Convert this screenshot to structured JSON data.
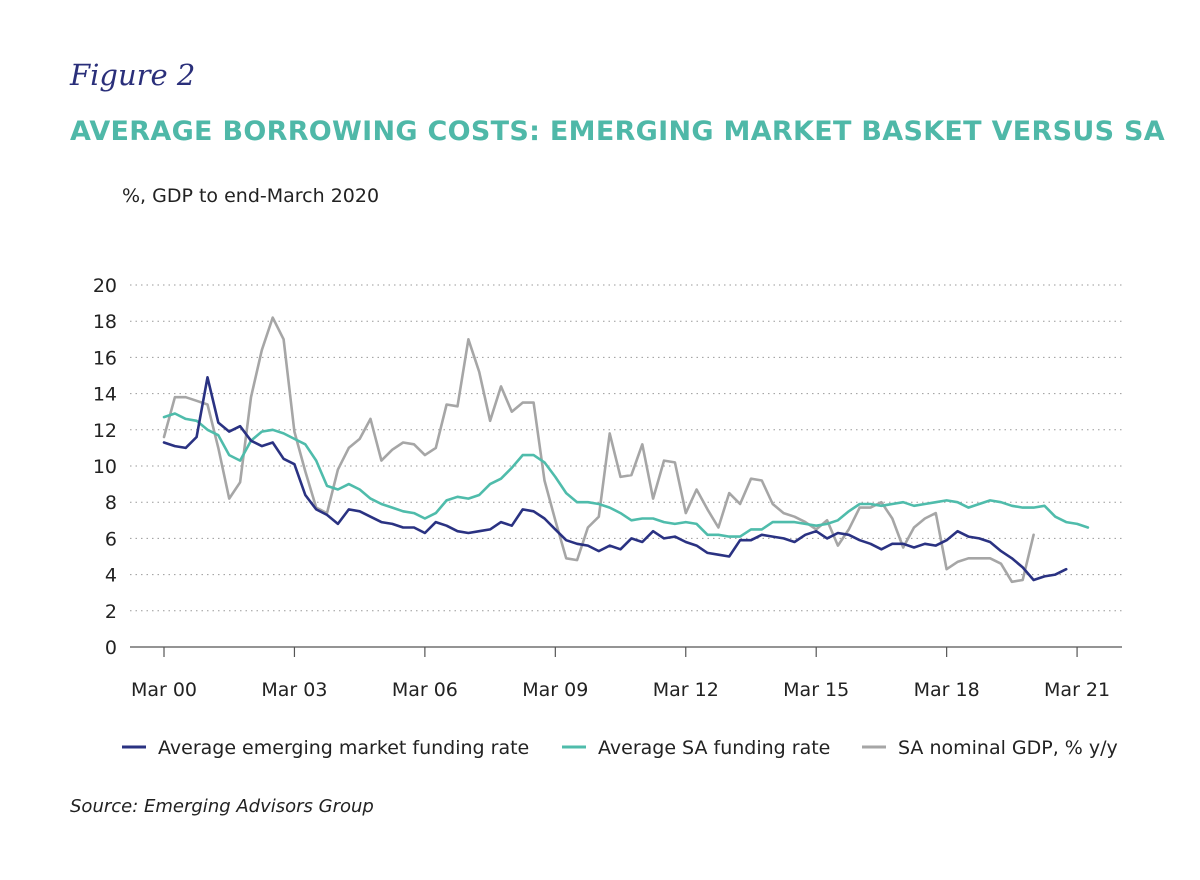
{
  "header": {
    "figure_label": "Figure 2",
    "title": "AVERAGE BORROWING COSTS: EMERGING MARKET BASKET VERSUS SA",
    "subtitle": "%, GDP to end-March 2020"
  },
  "source": "Source: Emerging Advisors Group",
  "colors": {
    "title": "#4fb8a8",
    "figure_label": "#2a2f7a"
  },
  "chart_data": {
    "type": "line",
    "title": "AVERAGE BORROWING COSTS: EMERGING MARKET BASKET VERSUS SA",
    "subtitle": "%, GDP to end-March 2020",
    "xlabel": "",
    "ylabel": "",
    "x_range": [
      "Mar 00",
      "Jun 21"
    ],
    "ylim": [
      0,
      20
    ],
    "yticks": [
      0,
      2,
      4,
      6,
      8,
      10,
      12,
      14,
      16,
      18,
      20
    ],
    "xticks": [
      "Mar 00",
      "Mar 03",
      "Mar 06",
      "Mar 09",
      "Mar 12",
      "Mar 15",
      "Mar 18",
      "Mar 21"
    ],
    "grid": "horizontal-dotted",
    "legend": "bottom",
    "x_unit": "quarters",
    "series": [
      {
        "name": "Average emerging market funding rate",
        "color": "#2a3282",
        "x": [
          "Mar 00",
          "Jun 00",
          "Sep 00",
          "Dec 00",
          "Mar 01",
          "Jun 01",
          "Sep 01",
          "Dec 01",
          "Mar 02",
          "Jun 02",
          "Sep 02",
          "Dec 02",
          "Mar 03",
          "Jun 03",
          "Sep 03",
          "Dec 03",
          "Mar 04",
          "Jun 04",
          "Sep 04",
          "Dec 04",
          "Mar 05",
          "Jun 05",
          "Sep 05",
          "Dec 05",
          "Mar 06",
          "Jun 06",
          "Sep 06",
          "Dec 06",
          "Mar 07",
          "Jun 07",
          "Sep 07",
          "Dec 07",
          "Mar 08",
          "Jun 08",
          "Sep 08",
          "Dec 08",
          "Mar 09",
          "Jun 09",
          "Sep 09",
          "Dec 09",
          "Mar 10",
          "Jun 10",
          "Sep 10",
          "Dec 10",
          "Mar 11",
          "Jun 11",
          "Sep 11",
          "Dec 11",
          "Mar 12",
          "Jun 12",
          "Sep 12",
          "Dec 12",
          "Mar 13",
          "Jun 13",
          "Sep 13",
          "Dec 13",
          "Mar 14",
          "Jun 14",
          "Sep 14",
          "Dec 14",
          "Mar 15",
          "Jun 15",
          "Sep 15",
          "Dec 15",
          "Mar 16",
          "Jun 16",
          "Sep 16",
          "Dec 16",
          "Mar 17",
          "Jun 17",
          "Sep 17",
          "Dec 17",
          "Mar 18",
          "Jun 18",
          "Sep 18",
          "Dec 18",
          "Mar 19",
          "Jun 19",
          "Sep 19",
          "Dec 19",
          "Mar 20",
          "Jun 20",
          "Sep 20",
          "Dec 20",
          "Mar 21",
          "Jun 21"
        ],
        "values": [
          11.3,
          11.1,
          11.0,
          11.6,
          14.9,
          12.4,
          11.9,
          12.2,
          11.4,
          11.1,
          11.3,
          10.4,
          10.1,
          8.4,
          7.6,
          7.3,
          6.8,
          7.6,
          7.5,
          7.2,
          6.9,
          6.8,
          6.6,
          6.6,
          6.3,
          6.9,
          6.7,
          6.4,
          6.3,
          6.4,
          6.5,
          6.9,
          6.7,
          7.6,
          7.5,
          7.1,
          6.5,
          5.9,
          5.7,
          5.6,
          5.3,
          5.6,
          5.4,
          6.0,
          5.8,
          6.4,
          6.0,
          6.1,
          5.8,
          5.6,
          5.2,
          5.1,
          5.0,
          5.9,
          5.9,
          6.2,
          6.1,
          6.0,
          5.8,
          6.2,
          6.4,
          6.0,
          6.3,
          6.2,
          5.9,
          5.7,
          5.4,
          5.7,
          5.7,
          5.5,
          5.7,
          5.6,
          5.9,
          6.4,
          6.1,
          6.0,
          5.8,
          5.3,
          4.9,
          4.4,
          3.7,
          3.9,
          4.0,
          4.3,
          null,
          null
        ]
      },
      {
        "name": "Average SA funding rate",
        "color": "#4fbcab",
        "x": [
          "Mar 00",
          "Jun 00",
          "Sep 00",
          "Dec 00",
          "Mar 01",
          "Jun 01",
          "Sep 01",
          "Dec 01",
          "Mar 02",
          "Jun 02",
          "Sep 02",
          "Dec 02",
          "Mar 03",
          "Jun 03",
          "Sep 03",
          "Dec 03",
          "Mar 04",
          "Jun 04",
          "Sep 04",
          "Dec 04",
          "Mar 05",
          "Jun 05",
          "Sep 05",
          "Dec 05",
          "Mar 06",
          "Jun 06",
          "Sep 06",
          "Dec 06",
          "Mar 07",
          "Jun 07",
          "Sep 07",
          "Dec 07",
          "Mar 08",
          "Jun 08",
          "Sep 08",
          "Dec 08",
          "Mar 09",
          "Jun 09",
          "Sep 09",
          "Dec 09",
          "Mar 10",
          "Jun 10",
          "Sep 10",
          "Dec 10",
          "Mar 11",
          "Jun 11",
          "Sep 11",
          "Dec 11",
          "Mar 12",
          "Jun 12",
          "Sep 12",
          "Dec 12",
          "Mar 13",
          "Jun 13",
          "Sep 13",
          "Dec 13",
          "Mar 14",
          "Jun 14",
          "Sep 14",
          "Dec 14",
          "Mar 15",
          "Jun 15",
          "Sep 15",
          "Dec 15",
          "Mar 16",
          "Jun 16",
          "Sep 16",
          "Dec 16",
          "Mar 17",
          "Jun 17",
          "Sep 17",
          "Dec 17",
          "Mar 18",
          "Jun 18",
          "Sep 18",
          "Dec 18",
          "Mar 19",
          "Jun 19",
          "Sep 19",
          "Dec 19",
          "Mar 20",
          "Jun 20",
          "Sep 20",
          "Dec 20",
          "Mar 21",
          "Jun 21"
        ],
        "values": [
          12.7,
          12.9,
          12.6,
          12.5,
          12.0,
          11.7,
          10.6,
          10.3,
          11.4,
          11.9,
          12.0,
          11.8,
          11.5,
          11.2,
          10.3,
          8.9,
          8.7,
          9.0,
          8.7,
          8.2,
          7.9,
          7.7,
          7.5,
          7.4,
          7.1,
          7.4,
          8.1,
          8.3,
          8.2,
          8.4,
          9.0,
          9.3,
          9.9,
          10.6,
          10.6,
          10.2,
          9.4,
          8.5,
          8.0,
          8.0,
          7.9,
          7.7,
          7.4,
          7.0,
          7.1,
          7.1,
          6.9,
          6.8,
          6.9,
          6.8,
          6.2,
          6.2,
          6.1,
          6.1,
          6.5,
          6.5,
          6.9,
          6.9,
          6.9,
          6.8,
          6.7,
          6.8,
          7.0,
          7.5,
          7.9,
          7.9,
          7.8,
          7.9,
          8.0,
          7.8,
          7.9,
          8.0,
          8.1,
          8.0,
          7.7,
          7.9,
          8.1,
          8.0,
          7.8,
          7.7,
          7.7,
          7.8,
          7.2,
          6.9,
          6.8,
          6.6
        ]
      },
      {
        "name": "SA nominal GDP, % y/y",
        "color": "#a6a6a6",
        "x": [
          "Mar 00",
          "Jun 00",
          "Sep 00",
          "Dec 00",
          "Mar 01",
          "Jun 01",
          "Sep 01",
          "Dec 01",
          "Mar 02",
          "Jun 02",
          "Sep 02",
          "Dec 02",
          "Mar 03",
          "Jun 03",
          "Sep 03",
          "Dec 03",
          "Mar 04",
          "Jun 04",
          "Sep 04",
          "Dec 04",
          "Mar 05",
          "Jun 05",
          "Sep 05",
          "Dec 05",
          "Mar 06",
          "Jun 06",
          "Sep 06",
          "Dec 06",
          "Mar 07",
          "Jun 07",
          "Sep 07",
          "Dec 07",
          "Mar 08",
          "Jun 08",
          "Sep 08",
          "Dec 08",
          "Mar 09",
          "Jun 09",
          "Sep 09",
          "Dec 09",
          "Mar 10",
          "Jun 10",
          "Sep 10",
          "Dec 10",
          "Mar 11",
          "Jun 11",
          "Sep 11",
          "Dec 11",
          "Mar 12",
          "Jun 12",
          "Sep 12",
          "Dec 12",
          "Mar 13",
          "Jun 13",
          "Sep 13",
          "Dec 13",
          "Mar 14",
          "Jun 14",
          "Sep 14",
          "Dec 14",
          "Mar 15",
          "Jun 15",
          "Sep 15",
          "Dec 15",
          "Mar 16",
          "Jun 16",
          "Sep 16",
          "Dec 16",
          "Mar 17",
          "Jun 17",
          "Sep 17",
          "Dec 17",
          "Mar 18",
          "Jun 18",
          "Sep 18",
          "Dec 18",
          "Mar 19",
          "Jun 19",
          "Sep 19",
          "Dec 19",
          "Mar 20"
        ],
        "values": [
          11.6,
          13.8,
          13.8,
          13.6,
          13.4,
          11.0,
          8.2,
          9.1,
          13.8,
          16.4,
          18.2,
          17.0,
          11.9,
          9.7,
          7.7,
          7.4,
          9.8,
          11.0,
          11.5,
          12.6,
          10.3,
          10.9,
          11.3,
          11.2,
          10.6,
          11.0,
          13.4,
          13.3,
          17.0,
          15.2,
          12.5,
          14.4,
          13.0,
          13.5,
          13.5,
          9.2,
          7.0,
          4.9,
          4.8,
          6.6,
          7.2,
          11.8,
          9.4,
          9.5,
          11.2,
          8.2,
          10.3,
          10.2,
          7.4,
          8.7,
          7.6,
          6.6,
          8.5,
          7.9,
          9.3,
          9.2,
          7.9,
          7.4,
          7.2,
          6.9,
          6.5,
          7.0,
          5.6,
          6.5,
          7.7,
          7.7,
          8.0,
          7.1,
          5.5,
          6.6,
          7.1,
          7.4,
          4.3,
          4.7,
          4.9,
          4.9,
          4.9,
          4.6,
          3.6,
          3.7,
          6.2
        ]
      }
    ]
  }
}
